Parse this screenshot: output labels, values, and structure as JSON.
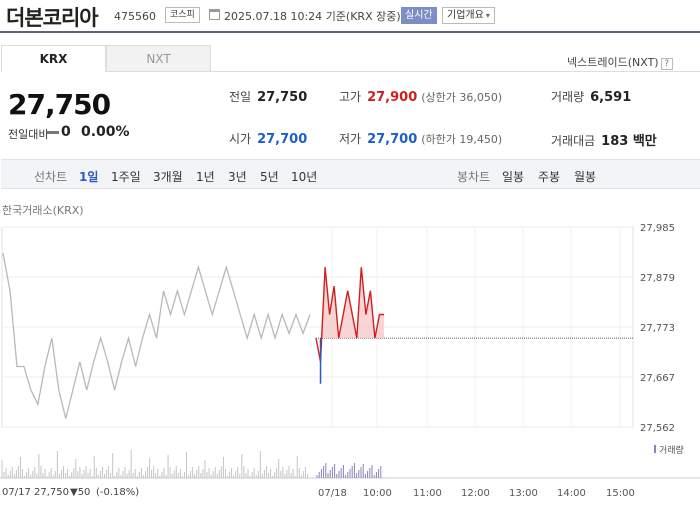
{
  "header": {
    "stock_name": "더본코리아",
    "stock_code": "475560",
    "market": "코스피",
    "timestamp": "2025.07.18 10:24",
    "timestamp_suffix": "기준(KRX 장중)",
    "live_label": "실시간",
    "corp_info_label": "기업개요",
    "corp_info_icon": "chevron-down-icon"
  },
  "tabs": [
    {
      "label": "KRX",
      "active": true
    },
    {
      "label": "NXT",
      "active": false
    }
  ],
  "nxt_trade": {
    "label": "넥스트레이드(NXT)",
    "help": "?"
  },
  "quote": {
    "price": "27,750",
    "change_label": "전일대비",
    "change_value": "0",
    "change_pct": "0.00%"
  },
  "stats": {
    "prev_label": "전일",
    "prev_value": "27,750",
    "high_label": "고가",
    "high_value": "27,900",
    "upper_limit": "(상한가 36,050)",
    "volume_label": "거래량",
    "volume_value": "6,591",
    "open_label": "시가",
    "open_value": "27,700",
    "low_label": "저가",
    "low_value": "27,700",
    "lower_limit": "(하한가 19,450)",
    "amount_label": "거래대금",
    "amount_value": "183 백만"
  },
  "period_bar": {
    "line_label": "선차트",
    "line_periods": [
      "1일",
      "1주일",
      "3개월",
      "1년",
      "3년",
      "5년",
      "10년"
    ],
    "selected_period": "1일",
    "candle_label": "봉차트",
    "candle_periods": [
      "일봉",
      "주봉",
      "월봉"
    ]
  },
  "chart_title": "한국거래소(KRX)",
  "chart_data": {
    "type": "line",
    "y_ticks": [
      "27,985",
      "27,879",
      "27,773",
      "27,667",
      "27,562"
    ],
    "ylim": [
      27562,
      27985
    ],
    "x_ticks": [
      "07/18",
      "10:00",
      "11:00",
      "12:00",
      "13:00",
      "14:00",
      "15:00"
    ],
    "reference_price": 27750,
    "prev_day_prices": [
      27930,
      27850,
      27690,
      27690,
      27640,
      27610,
      27690,
      27750,
      27640,
      27580,
      27640,
      27700,
      27640,
      27700,
      27750,
      27700,
      27640,
      27700,
      27750,
      27690,
      27750,
      27800,
      27750,
      27850,
      27800,
      27850,
      27800,
      27850,
      27900,
      27850,
      27800,
      27850,
      27900,
      27850,
      27800,
      27750,
      27800,
      27750,
      27800,
      27750,
      27800,
      27760,
      27800,
      27760,
      27800
    ],
    "today_prices": [
      27750,
      27700,
      27900,
      27800,
      27860,
      27750,
      27800,
      27850,
      27800,
      27750,
      27900,
      27800,
      27850,
      27750,
      27800,
      27800
    ],
    "volume_label": "거래량",
    "volume_icon": "volume-legend-icon"
  },
  "footer": {
    "prev_date": "07/17",
    "prev_close": "27,750",
    "prev_change": "▼50",
    "prev_change_pct": "(-0.18%)"
  },
  "colors": {
    "up": "#d11f1f",
    "down": "#1e5fc8",
    "prev_line": "#b8b8b8",
    "header_rule": "#5b6472"
  }
}
